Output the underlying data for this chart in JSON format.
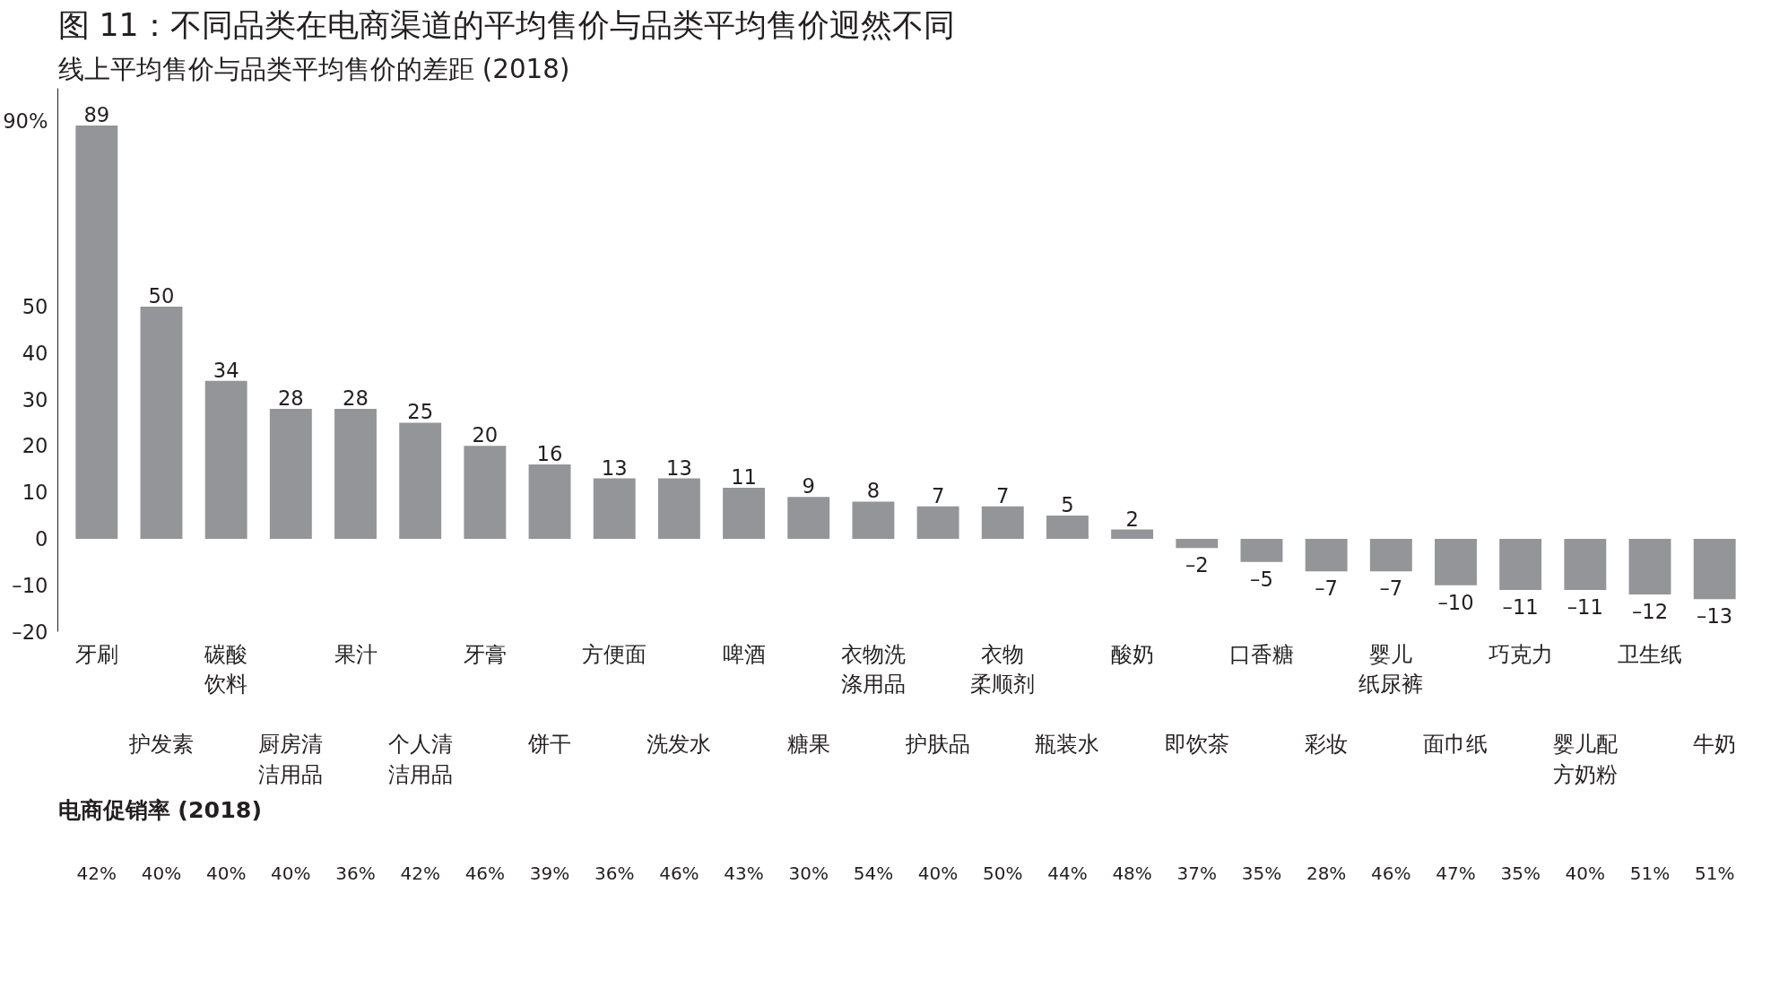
{
  "chart_data": [
    {
      "type": "bar",
      "title": "图 11：不同品类在电商渠道的平均售价与品类平均售价迥然不同",
      "subtitle": "线上平均售价与品类平均售价的差距 (2018)",
      "categories": [
        "牙刷",
        "护发素",
        "碳酸饮料",
        "厨房清洁用品",
        "果汁",
        "个人清洁用品",
        "牙膏",
        "饼干",
        "方便面",
        "洗发水",
        "啤酒",
        "糖果",
        "衣物洗涤用品",
        "护肤品",
        "衣物柔顺剂",
        "瓶装水",
        "酸奶",
        "即饮茶",
        "口香糖",
        "彩妆",
        "婴儿纸尿裤",
        "面巾纸",
        "巧克力",
        "婴儿配方奶粉",
        "卫生纸",
        "牛奶"
      ],
      "values": [
        89,
        50,
        34,
        28,
        28,
        25,
        20,
        16,
        13,
        13,
        11,
        9,
        8,
        7,
        7,
        5,
        2,
        -2,
        -5,
        -7,
        -7,
        -10,
        -11,
        -11,
        -12,
        -13
      ],
      "value_labels": [
        "89",
        "50",
        "34",
        "28",
        "28",
        "25",
        "20",
        "16",
        "13",
        "13",
        "11",
        "9",
        "8",
        "7",
        "7",
        "5",
        "2",
        "–2",
        "–5",
        "–7",
        "–7",
        "–10",
        "–11",
        "–11",
        "–12",
        "–13"
      ],
      "color": "#939598",
      "ylim": [
        -20,
        97
      ],
      "yticks": [
        {
          "value": -20,
          "label": "–20"
        },
        {
          "value": -10,
          "label": "–10"
        },
        0,
        10,
        20,
        30,
        40,
        50,
        {
          "value": 90,
          "label": "90%"
        }
      ]
    },
    {
      "type": "other",
      "title": "电商促销率 (2018)",
      "categories": [
        null,
        null,
        null,
        null,
        null,
        null,
        null,
        null,
        null,
        null,
        null,
        null,
        null,
        null,
        null,
        null,
        null,
        null,
        null,
        null,
        null,
        null,
        null,
        null,
        null,
        null
      ],
      "values": [
        42,
        40,
        40,
        40,
        36,
        42,
        46,
        39,
        36,
        46,
        43,
        30,
        54,
        40,
        50,
        44,
        48,
        37,
        35,
        28,
        46,
        47,
        35,
        40,
        51,
        51
      ],
      "value_labels": [
        "42%",
        "40%",
        "40%",
        "40%",
        "36%",
        "42%",
        "46%",
        "39%",
        "36%",
        "46%",
        "43%",
        "30%",
        "54%",
        "40%",
        "50%",
        "44%",
        "48%",
        "37%",
        "35%",
        "28%",
        "46%",
        "47%",
        "35%",
        "40%",
        "51%",
        "51%"
      ]
    }
  ]
}
